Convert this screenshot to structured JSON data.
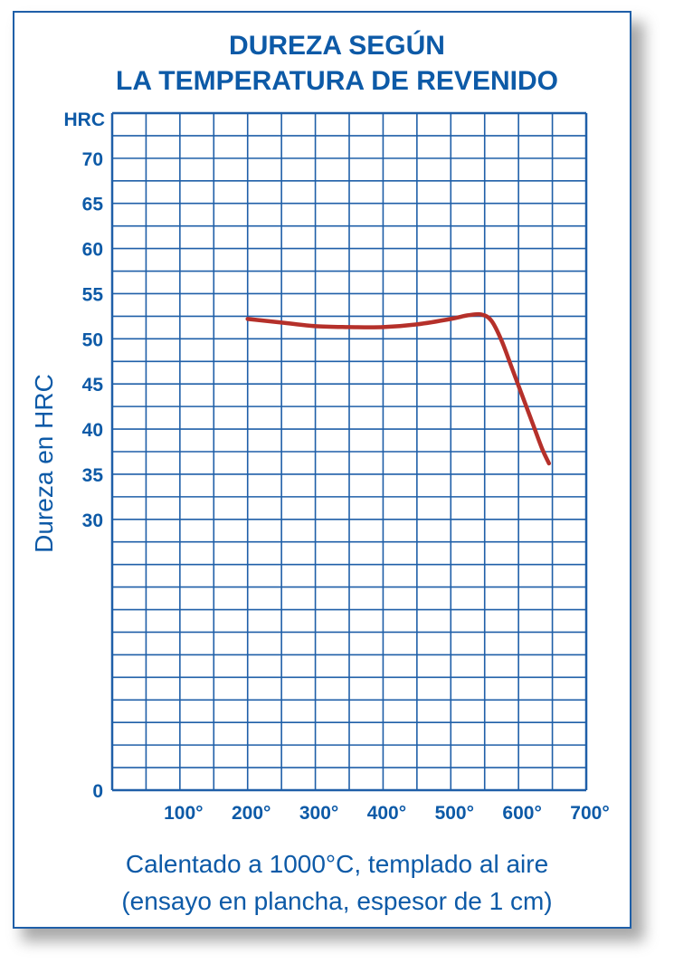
{
  "colors": {
    "accent": "#0d5aa7",
    "grid": "#1f5fa8",
    "curve": "#b5302a"
  },
  "header": {
    "title_line1": "DUREZA SEGÚN",
    "title_line2": "LA TEMPERATURA DE REVENIDO"
  },
  "footer": {
    "line1": "Calentado a 1000°C, templado al aire",
    "line2": "(ensayo en plancha, espesor de 1 cm)"
  },
  "chart_data": {
    "type": "line",
    "title": "DUREZA SEGÚN LA TEMPERATURA DE REVENIDO",
    "ylabel": "Dureza en HRC",
    "y_unit_label": "HRC",
    "xlabel": "",
    "xlim": [
      0,
      700
    ],
    "ylim": [
      0,
      75
    ],
    "grid": true,
    "x_ticks": [
      100,
      200,
      300,
      400,
      500,
      600,
      700
    ],
    "x_tick_labels": [
      "100°",
      "200°",
      "300°",
      "400°",
      "500°",
      "600°",
      "700°"
    ],
    "y_ticks": [
      0,
      30,
      35,
      40,
      45,
      50,
      55,
      60,
      65,
      70
    ],
    "y_tick_labels": [
      "0",
      "30",
      "35",
      "40",
      "45",
      "50",
      "55",
      "60",
      "65",
      "70"
    ],
    "series": [
      {
        "x": [
          200,
          250,
          300,
          350,
          400,
          450,
          500,
          525,
          545,
          560,
          575,
          590,
          605,
          620,
          635,
          645
        ],
        "y": [
          52.2,
          51.8,
          51.4,
          51.3,
          51.3,
          51.6,
          52.2,
          52.6,
          52.7,
          52.0,
          49.8,
          46.8,
          43.8,
          40.8,
          37.8,
          36.2
        ]
      }
    ]
  }
}
